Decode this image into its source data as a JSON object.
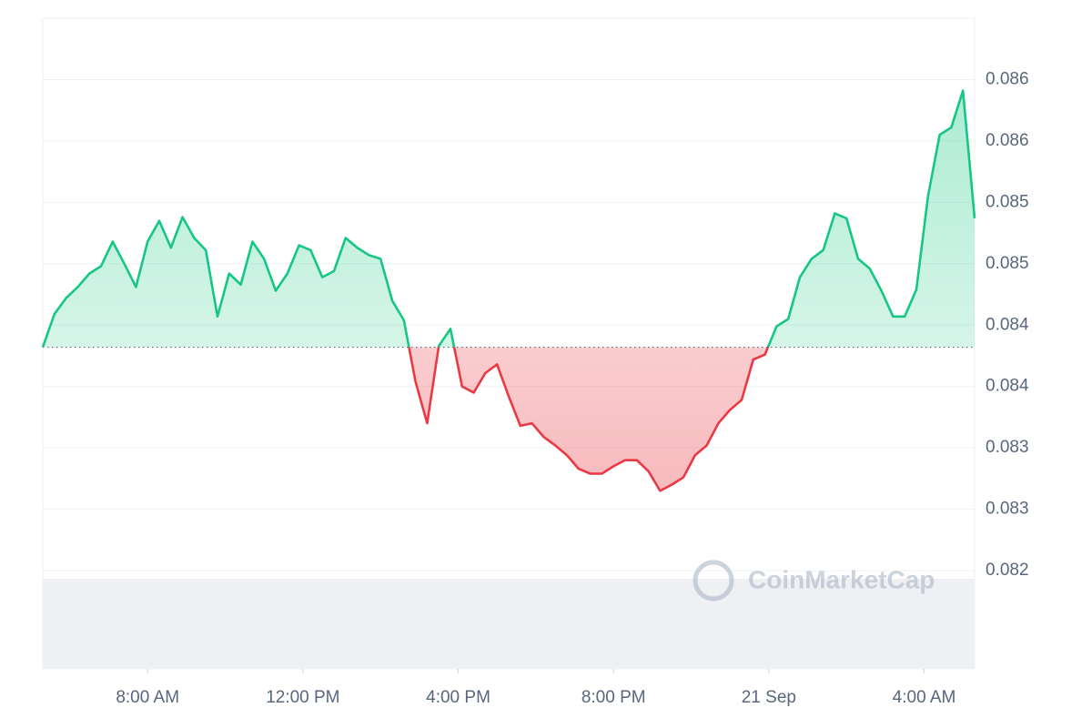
{
  "chart_data": {
    "type": "line",
    "watermark": "CoinMarketCap",
    "x": [
      5.3,
      5.6,
      5.9,
      6.2,
      6.5,
      6.8,
      7.1,
      7.4,
      7.7,
      8,
      8.3,
      8.6,
      8.9,
      9.2,
      9.5,
      9.8,
      10.1,
      10.4,
      10.7,
      11,
      11.3,
      11.6,
      11.9,
      12.2,
      12.5,
      12.8,
      13.1,
      13.4,
      13.7,
      14,
      14.3,
      14.6,
      14.9,
      15.2,
      15.5,
      15.8,
      16.1,
      16.4,
      16.7,
      17,
      17.3,
      17.6,
      17.9,
      18.2,
      18.5,
      18.8,
      19.1,
      19.4,
      19.7,
      20,
      20.3,
      20.6,
      20.9,
      21.2,
      21.5,
      21.8,
      22.1,
      22.4,
      22.7,
      23,
      23.3,
      23.6,
      23.9,
      24.2,
      24.5,
      24.8,
      25.1,
      25.4,
      25.7,
      26,
      26.3,
      26.6,
      26.9,
      27.2,
      27.5,
      27.8,
      28.1,
      28.4,
      28.7,
      29,
      29.3
    ],
    "values": [
      0.08382,
      0.08409,
      0.08422,
      0.08431,
      0.08442,
      0.08448,
      0.08468,
      0.0845,
      0.08431,
      0.08468,
      0.08485,
      0.08463,
      0.08488,
      0.08471,
      0.08461,
      0.08407,
      0.08442,
      0.08433,
      0.08468,
      0.08454,
      0.08428,
      0.08442,
      0.08465,
      0.08461,
      0.08439,
      0.08444,
      0.08471,
      0.08463,
      0.08457,
      0.08454,
      0.0842,
      0.08404,
      0.08354,
      0.0832,
      0.08383,
      0.08397,
      0.0835,
      0.08345,
      0.08361,
      0.08368,
      0.08342,
      0.08318,
      0.0832,
      0.08309,
      0.08302,
      0.08294,
      0.08283,
      0.08279,
      0.08279,
      0.08285,
      0.0829,
      0.0829,
      0.08281,
      0.08265,
      0.0827,
      0.08276,
      0.08294,
      0.08302,
      0.0832,
      0.08331,
      0.08339,
      0.08372,
      0.08376,
      0.08399,
      0.08405,
      0.08439,
      0.08454,
      0.08461,
      0.08491,
      0.08487,
      0.08454,
      0.08446,
      0.08428,
      0.08407,
      0.08407,
      0.08429,
      0.08505,
      0.08555,
      0.08561,
      0.08591,
      0.08487
    ],
    "baseline": 0.08382,
    "colors": {
      "up": "#16c784",
      "down": "#ea3943"
    },
    "xlim": [
      5.3,
      29.3
    ],
    "xticks": [
      {
        "value": 8,
        "label": "8:00 AM"
      },
      {
        "value": 12,
        "label": "12:00 PM"
      },
      {
        "value": 16,
        "label": "4:00 PM"
      },
      {
        "value": 20,
        "label": "8:00 PM"
      },
      {
        "value": 24,
        "label": "21 Sep"
      },
      {
        "value": 28,
        "label": "4:00 AM"
      }
    ],
    "ylim": [
      0.0812,
      0.0865
    ],
    "yticks": [
      {
        "value": 0.086,
        "label": "0.086"
      },
      {
        "value": 0.0855,
        "label": "0.086"
      },
      {
        "value": 0.085,
        "label": "0.085"
      },
      {
        "value": 0.0845,
        "label": "0.085"
      },
      {
        "value": 0.084,
        "label": "0.084"
      },
      {
        "value": 0.0835,
        "label": "0.084"
      },
      {
        "value": 0.083,
        "label": "0.083"
      },
      {
        "value": 0.0825,
        "label": "0.083"
      },
      {
        "value": 0.082,
        "label": "0.082"
      }
    ],
    "grid": true
  }
}
